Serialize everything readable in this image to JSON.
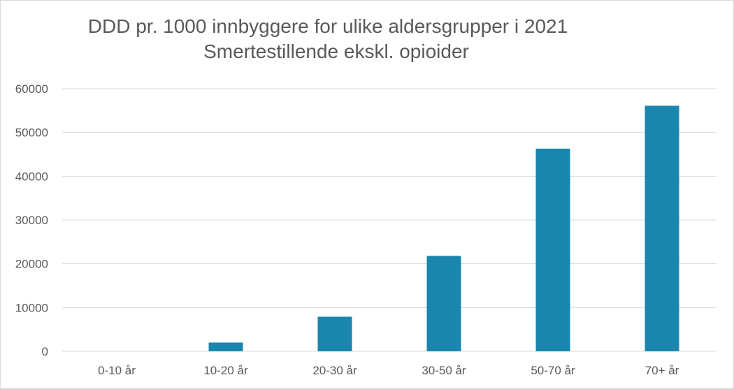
{
  "chart_data": {
    "type": "bar",
    "title": "DDD pr. 1000 innbyggere for ulike aldersgrupper i 2021",
    "subtitle": "Smertestillende ekskl. opioider",
    "categories": [
      "0-10 år",
      "10-20 år",
      "20-30 år",
      "30-50 år",
      "50-70 år",
      "70+ år"
    ],
    "values": [
      0,
      2000,
      7900,
      21800,
      46300,
      56100
    ],
    "ylim": [
      0,
      60000
    ],
    "yticks": [
      0,
      10000,
      20000,
      30000,
      40000,
      50000,
      60000
    ],
    "grid": true,
    "bar_color": "#1a86ad",
    "xlabel": "",
    "ylabel": ""
  }
}
